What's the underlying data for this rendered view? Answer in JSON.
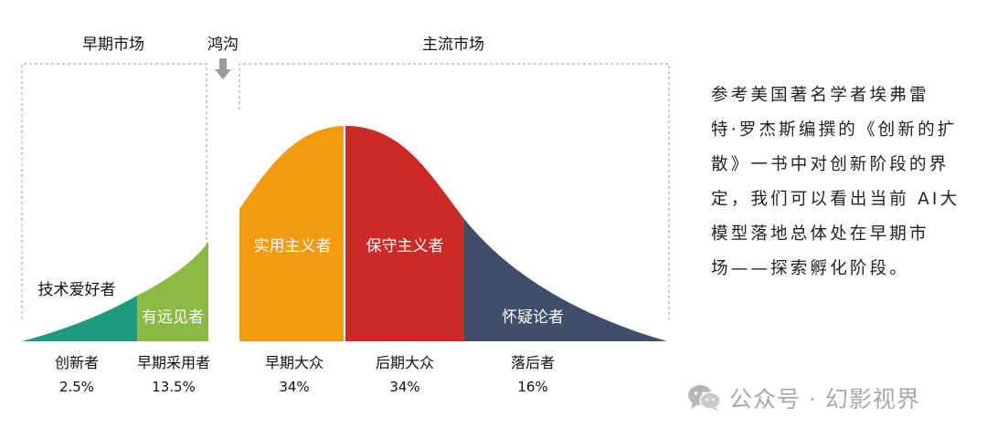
{
  "regions": {
    "early_market": "早期市场",
    "chasm": "鸿沟",
    "mainstream_market": "主流市场"
  },
  "colors": {
    "innovators": "#1e9a7e",
    "early_adopters": "#8bba44",
    "early_majority": "#f39a0f",
    "late_majority": "#cc2a26",
    "laggards": "#3d4f6a",
    "bracket": "#aaaaaa",
    "arrow": "#9a9a9a"
  },
  "segments": [
    {
      "curve_label": "技术爱好者",
      "name": "创新者",
      "percent": "2.5%"
    },
    {
      "curve_label": "有远见者",
      "name": "早期采用者",
      "percent": "13.5%"
    },
    {
      "curve_label": "实用主义者",
      "name": "早期大众",
      "percent": "34%"
    },
    {
      "curve_label": "保守主义者",
      "name": "后期大众",
      "percent": "34%"
    },
    {
      "curve_label": "怀疑论者",
      "name": "落后者",
      "percent": "16%"
    }
  ],
  "description_lines": [
    "参考美国著名学者埃弗雷",
    "特·罗杰斯编撰的《创新的扩",
    "散》一书中对创新阶段的界",
    "定，我们可以看出当前 AI大",
    "模型落地总体处在早期市",
    "场——探索孵化阶段。"
  ],
  "watermark": {
    "icon": "wechat-icon",
    "text": "公众号 · 幻影视界"
  }
}
